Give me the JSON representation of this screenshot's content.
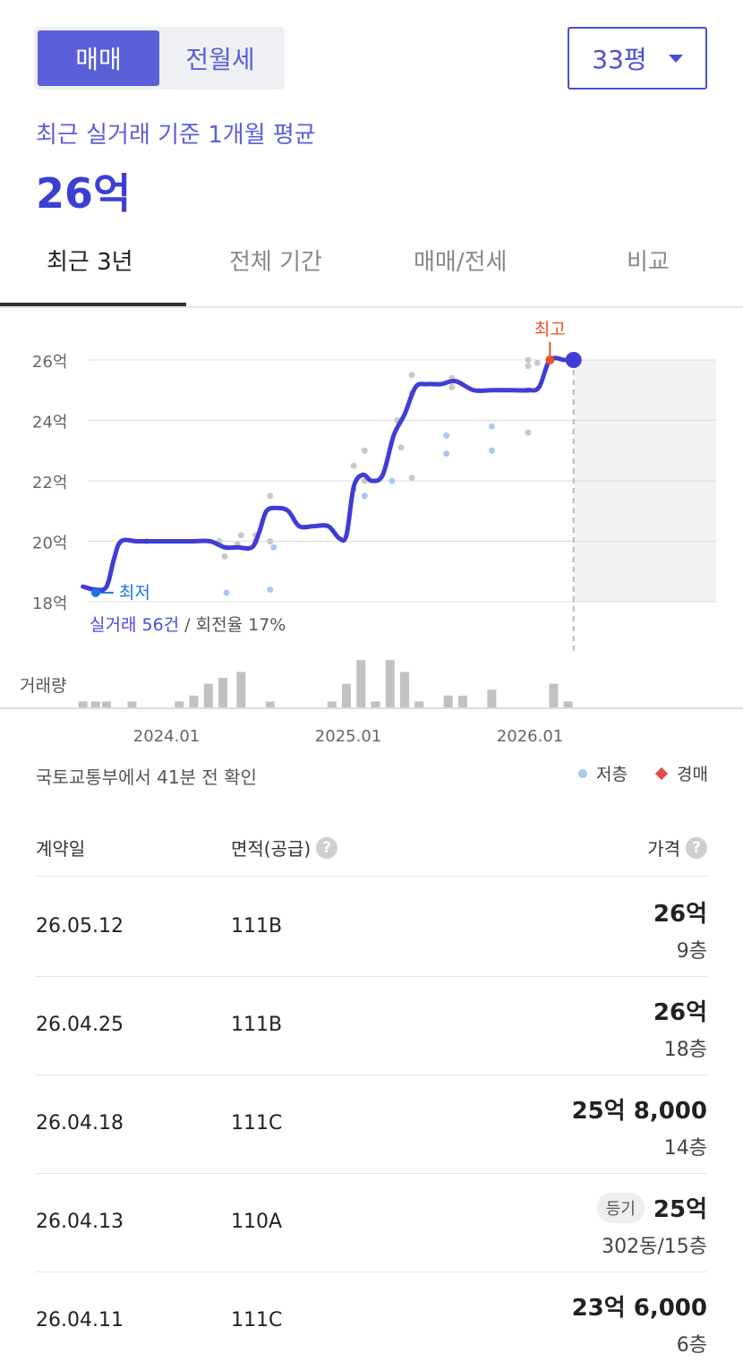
{
  "toggle": {
    "options": [
      "매매",
      "전월세"
    ],
    "selected": "매매"
  },
  "size_select": {
    "value": "33평"
  },
  "summary": {
    "label": "최근 실거래 기준 1개월 평균",
    "value": "26억"
  },
  "tabs": [
    {
      "label": "최근 3년",
      "active": true
    },
    {
      "label": "전체 기간",
      "active": false
    },
    {
      "label": "매매/전세",
      "active": false
    },
    {
      "label": "비교",
      "active": false
    }
  ],
  "chart_data": {
    "type": "line",
    "y_unit": "억",
    "ylim": [
      18,
      26
    ],
    "y_ticks": [
      "26억",
      "24억",
      "22억",
      "20억",
      "18억"
    ],
    "x_ticks": [
      "2024.01",
      "2025.01",
      "2026.01"
    ],
    "series": [],
    "line_points": [
      [
        2023.55,
        18.5
      ],
      [
        2023.62,
        18.4
      ],
      [
        2023.68,
        18.5
      ],
      [
        2023.72,
        19.4
      ],
      [
        2023.76,
        20.0
      ],
      [
        2023.85,
        20.0
      ],
      [
        2023.95,
        20.0
      ],
      [
        2024.05,
        20.0
      ],
      [
        2024.15,
        20.0
      ],
      [
        2024.25,
        20.0
      ],
      [
        2024.33,
        19.8
      ],
      [
        2024.4,
        19.8
      ],
      [
        2024.48,
        19.8
      ],
      [
        2024.52,
        20.3
      ],
      [
        2024.56,
        21.0
      ],
      [
        2024.62,
        21.1
      ],
      [
        2024.68,
        21.0
      ],
      [
        2024.74,
        20.5
      ],
      [
        2024.82,
        20.5
      ],
      [
        2024.9,
        20.5
      ],
      [
        2024.96,
        20.1
      ],
      [
        2025.0,
        20.2
      ],
      [
        2025.04,
        21.8
      ],
      [
        2025.09,
        22.2
      ],
      [
        2025.14,
        22.0
      ],
      [
        2025.2,
        22.2
      ],
      [
        2025.26,
        23.5
      ],
      [
        2025.32,
        24.2
      ],
      [
        2025.38,
        25.1
      ],
      [
        2025.44,
        25.2
      ],
      [
        2025.52,
        25.2
      ],
      [
        2025.6,
        25.3
      ],
      [
        2025.7,
        25.0
      ],
      [
        2025.8,
        25.0
      ],
      [
        2025.9,
        25.0
      ],
      [
        2026.0,
        25.0
      ],
      [
        2026.06,
        25.1
      ],
      [
        2026.12,
        26.0
      ],
      [
        2026.2,
        26.0
      ],
      [
        2026.25,
        26.0
      ]
    ],
    "trades": [
      [
        2023.9,
        20.0
      ],
      [
        2024.3,
        20.0
      ],
      [
        2024.33,
        19.5
      ],
      [
        2024.4,
        19.9
      ],
      [
        2024.42,
        20.2
      ],
      [
        2024.5,
        20.2
      ],
      [
        2024.5,
        20.0
      ],
      [
        2024.58,
        21.5
      ],
      [
        2024.58,
        20.0
      ],
      [
        2025.04,
        22.5
      ],
      [
        2025.04,
        21.7
      ],
      [
        2025.1,
        23.0
      ],
      [
        2025.1,
        22.0
      ],
      [
        2025.28,
        24.0
      ],
      [
        2025.3,
        23.1
      ],
      [
        2025.36,
        25.5
      ],
      [
        2025.36,
        24.9
      ],
      [
        2025.36,
        22.1
      ],
      [
        2025.58,
        25.4
      ],
      [
        2025.58,
        25.1
      ],
      [
        2026.0,
        26.0
      ],
      [
        2026.0,
        25.8
      ],
      [
        2026.0,
        25.0
      ],
      [
        2026.0,
        23.6
      ],
      [
        2026.05,
        25.9
      ]
    ],
    "trades_low_floor": [
      [
        2024.34,
        18.3
      ],
      [
        2024.58,
        18.4
      ],
      [
        2024.6,
        19.8
      ],
      [
        2025.1,
        21.5
      ],
      [
        2025.25,
        22.0
      ],
      [
        2025.55,
        23.5
      ],
      [
        2025.55,
        22.9
      ],
      [
        2025.8,
        23.8
      ],
      [
        2025.8,
        23.0
      ]
    ],
    "volume": [
      {
        "x": 2023.55,
        "v": 1
      },
      {
        "x": 2023.62,
        "v": 1
      },
      {
        "x": 2023.68,
        "v": 1
      },
      {
        "x": 2023.82,
        "v": 1
      },
      {
        "x": 2024.08,
        "v": 1
      },
      {
        "x": 2024.16,
        "v": 2
      },
      {
        "x": 2024.24,
        "v": 4
      },
      {
        "x": 2024.32,
        "v": 5
      },
      {
        "x": 2024.42,
        "v": 6
      },
      {
        "x": 2024.58,
        "v": 1
      },
      {
        "x": 2024.92,
        "v": 1
      },
      {
        "x": 2025.0,
        "v": 4
      },
      {
        "x": 2025.08,
        "v": 8
      },
      {
        "x": 2025.16,
        "v": 1
      },
      {
        "x": 2025.24,
        "v": 8
      },
      {
        "x": 2025.32,
        "v": 6
      },
      {
        "x": 2025.4,
        "v": 1
      },
      {
        "x": 2025.56,
        "v": 2
      },
      {
        "x": 2025.64,
        "v": 2
      },
      {
        "x": 2025.8,
        "v": 3
      },
      {
        "x": 2026.14,
        "v": 4
      },
      {
        "x": 2026.22,
        "v": 1
      }
    ],
    "low": {
      "x": 2023.62,
      "y": 18.3,
      "label": "최저"
    },
    "high": {
      "x": 2026.12,
      "y": 26.0,
      "label": "최고"
    },
    "current": {
      "x": 2026.25,
      "y": 26.0
    },
    "forecast_from": 2026.25,
    "volume_label": "거래량",
    "stats_highlight": "실거래 56건",
    "stats_rest": " / 회전율 17%"
  },
  "colors": {
    "line": "#3f3dd6",
    "low": "#1a73e8",
    "high": "#e8542a",
    "low_floor_dot": "#a8c9f0",
    "trade_dot": "#c8c8c8"
  },
  "timestamp": "국토교통부에서 41분 전 확인",
  "legend": {
    "low_floor": "저층",
    "auction": "경매"
  },
  "table": {
    "headers": {
      "date": "계약일",
      "area": "면적(공급)",
      "price": "가격"
    },
    "rows": [
      {
        "date": "26.05.12",
        "area": "111B",
        "price": "26억",
        "floor": "9층",
        "badge": ""
      },
      {
        "date": "26.04.25",
        "area": "111B",
        "price": "26억",
        "floor": "18층",
        "badge": ""
      },
      {
        "date": "26.04.18",
        "area": "111C",
        "price": "25억 8,000",
        "floor": "14층",
        "badge": ""
      },
      {
        "date": "26.04.13",
        "area": "110A",
        "price": "25억",
        "floor": "302동/15층",
        "badge": "등기"
      },
      {
        "date": "26.04.11",
        "area": "111C",
        "price": "23억 6,000",
        "floor": "6층",
        "badge": ""
      }
    ]
  }
}
